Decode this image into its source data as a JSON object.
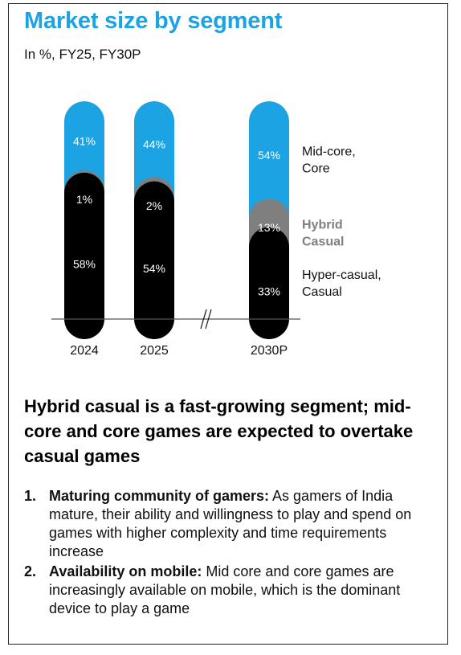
{
  "title": "Market size by segment",
  "subtitle": "In %, FY25, FY30P",
  "chart_data": {
    "type": "bar",
    "stacked": true,
    "normalized_percent": true,
    "categories": [
      "2024",
      "2025",
      "2030P"
    ],
    "axis_break_between": [
      "2025",
      "2030P"
    ],
    "series": [
      {
        "name": "Hyper-casual, Casual",
        "label_lines": [
          "Hyper-casual,",
          "Casual"
        ],
        "color": "#000000",
        "values": [
          58,
          54,
          33
        ],
        "labels": [
          "58%",
          "54%",
          "33%"
        ]
      },
      {
        "name": "Hybrid Casual",
        "label_lines": [
          "Hybrid",
          "Casual"
        ],
        "color": "#7f7f7f",
        "values": [
          1,
          2,
          13
        ],
        "labels": [
          "1%",
          "2%",
          "13%"
        ]
      },
      {
        "name": "Mid-core, Core",
        "label_lines": [
          "Mid-core,",
          "Core"
        ],
        "color": "#1ba3e3",
        "values": [
          41,
          44,
          54
        ],
        "labels": [
          "41%",
          "44%",
          "54%"
        ]
      }
    ],
    "grid": false,
    "legend": "right"
  },
  "headline": "Hybrid casual is a fast-growing segment; mid-core and core games are expected to overtake casual games",
  "points": [
    {
      "num": "1.",
      "lead": "Maturing community of gamers:",
      "text": " As gamers of India mature, their ability and willingness to play and spend on games with higher complexity and time requirements increase"
    },
    {
      "num": "2.",
      "lead": "Availability on mobile:",
      "text": " Mid core and core games are increasingly available on mobile, which is the dominant device to play a game"
    }
  ]
}
